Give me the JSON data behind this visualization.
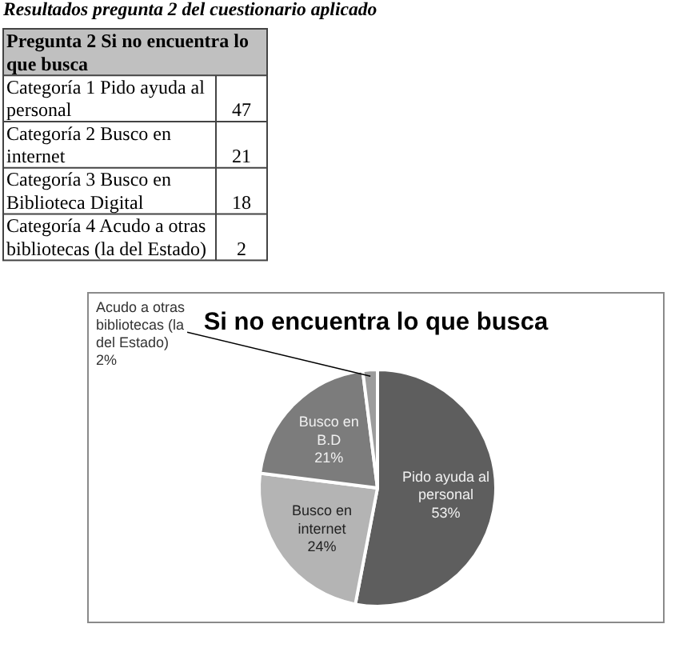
{
  "chart_data": [
    {
      "type": "other",
      "title": "Resultados pregunta 2 del cuestionario aplicado",
      "subtitle": "Pregunta 2 Si no encuentra lo que busca",
      "categories": [
        "Categoría 1 Pido ayuda al personal",
        "Categoría 2 Busco en internet",
        "Categoría 3 Busco en Biblioteca Digital",
        "Categoría 4 Acudo a otras bibliotecas (la del Estado)"
      ],
      "values": [
        47,
        21,
        18,
        2
      ],
      "data_labels": true
    },
    {
      "type": "pie",
      "title": "Si no encuentra lo que busca",
      "categories": [
        "Pido ayuda al personal",
        "Busco en internet",
        "Busco en B.D",
        "Acudo a otras bibliotecas (la del Estado)"
      ],
      "values": [
        53,
        24,
        21,
        2
      ],
      "colors": [
        "#5e5e5e",
        "#b4b4b4",
        "#7c7c7c",
        "#9c9c9c"
      ],
      "value_labels": [
        "53%",
        "24%",
        "21%",
        "2%"
      ]
    }
  ]
}
